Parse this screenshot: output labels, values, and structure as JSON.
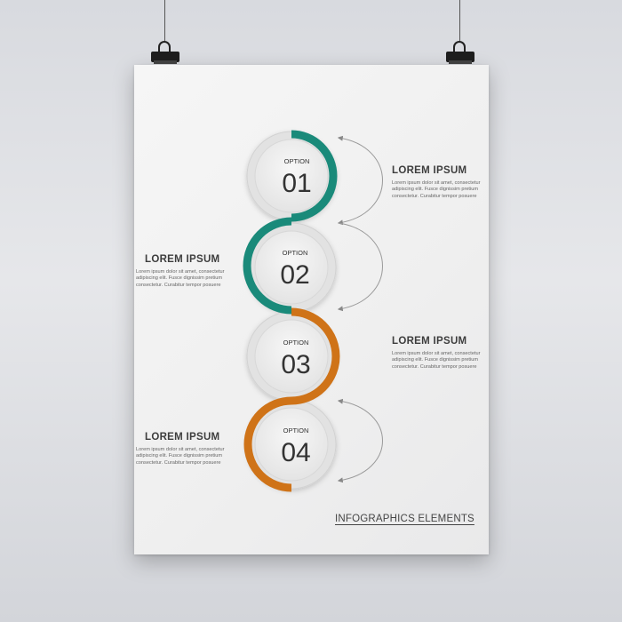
{
  "colors": {
    "teal": "#1a8a7a",
    "orange": "#cf7318",
    "circle_fill": "#eeeeee",
    "arrow": "#888888"
  },
  "options": [
    {
      "label": "OPTION",
      "number": "01",
      "color": "teal"
    },
    {
      "label": "OPTION",
      "number": "02",
      "color": "teal"
    },
    {
      "label": "OPTION",
      "number": "03",
      "color": "orange"
    },
    {
      "label": "OPTION",
      "number": "04",
      "color": "orange"
    }
  ],
  "blocks": [
    {
      "title": "LOREM IPSUM",
      "text": "Lorem ipsum dolor sit amet, consectetur adipiscing elit. Fusce dignissim pretium consectetur. Curabitur tempor posuere"
    },
    {
      "title": "LOREM IPSUM",
      "text": "Lorem ipsum dolor sit amet, consectetur adipiscing elit. Fusce dignissim pretium consectetur. Curabitur tempor posuere"
    },
    {
      "title": "LOREM IPSUM",
      "text": "Lorem ipsum dolor sit amet, consectetur adipiscing elit. Fusce dignissim pretium consectetur. Curabitur tempor posuere"
    },
    {
      "title": "LOREM IPSUM",
      "text": "Lorem ipsum dolor sit amet, consectetur adipiscing elit. Fusce dignissim pretium consectetur. Curabitur tempor posuere"
    }
  ],
  "footer": {
    "title": "INFOGRAPHICS ELEMENTS"
  }
}
